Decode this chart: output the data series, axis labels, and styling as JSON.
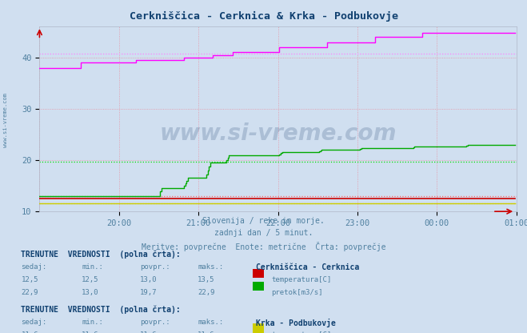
{
  "title": "Cerkniščica - Cerknica & Krka - Podbukovje",
  "title_color": "#104070",
  "bg_color": "#d0dff0",
  "plot_bg_color": "#d0dff0",
  "xlabel_text": "Slovenija / reke in morje.\nzadnji dan / 5 minut.\nMeritve: povprečne  Enote: metrične  Črta: povprečje",
  "xlabel_color": "#5080a0",
  "xticklabels": [
    "20:00",
    "21:00",
    "22:00",
    "23:00",
    "00:00",
    "01:00"
  ],
  "ylim": [
    10,
    46
  ],
  "yticks": [
    10,
    20,
    30,
    40
  ],
  "total_points": 360,
  "watermark": "www.si-vreme.com",
  "watermark_color": "#1a3a6a",
  "watermark_alpha": 0.2,
  "sidebar_text": "www.si-vreme.com",
  "sidebar_color": "#5080a0",
  "lines": {
    "cerknica_temp": {
      "color": "#cc0000",
      "dashed_color": "#ff6060",
      "avg": 13.0
    },
    "cerknica_pretok": {
      "color": "#00aa00",
      "dashed_color": "#00dd00",
      "avg": 19.7
    },
    "krka_temp": {
      "color": "#cccc00",
      "dashed_color": "#eeee40",
      "avg": 11.6
    },
    "krka_pretok": {
      "color": "#ff00ff",
      "dashed_color": "#ff80ff",
      "avg": 40.7
    }
  },
  "table1_title": "Cerkniščica - Cerknica",
  "table2_title": "Krka - Podbukovje",
  "table_header_color": "#104070",
  "table_value_color": "#5080a0",
  "swatch_colors": {
    "cerknica_temp": "#cc0000",
    "cerknica_pretok": "#00aa00",
    "krka_temp": "#cccc00",
    "krka_pretok": "#ff00ff"
  }
}
